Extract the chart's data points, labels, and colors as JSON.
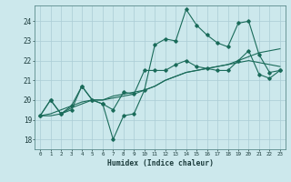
{
  "xlabel": "Humidex (Indice chaleur)",
  "bg_color": "#cce8ec",
  "grid_color": "#aaccd4",
  "line_color": "#1a6b5a",
  "xlim": [
    -0.5,
    23.5
  ],
  "ylim": [
    17.5,
    24.8
  ],
  "yticks": [
    18,
    19,
    20,
    21,
    22,
    23,
    24
  ],
  "xticks": [
    0,
    1,
    2,
    3,
    4,
    5,
    6,
    7,
    8,
    9,
    10,
    11,
    12,
    13,
    14,
    15,
    16,
    17,
    18,
    19,
    20,
    21,
    22,
    23
  ],
  "series1_x": [
    0,
    1,
    2,
    3,
    4,
    5,
    6,
    7,
    8,
    9,
    10,
    11,
    12,
    13,
    14,
    15,
    16,
    17,
    18,
    19,
    20,
    21,
    22,
    23
  ],
  "series1_y": [
    19.2,
    20.0,
    19.3,
    19.7,
    20.7,
    20.0,
    19.8,
    18.0,
    19.2,
    19.3,
    20.5,
    22.8,
    23.1,
    23.0,
    24.6,
    23.8,
    23.3,
    22.9,
    22.7,
    23.9,
    24.0,
    22.3,
    21.4,
    21.5
  ],
  "series2_x": [
    0,
    1,
    2,
    3,
    4,
    5,
    6,
    7,
    8,
    9,
    10,
    11,
    12,
    13,
    14,
    15,
    16,
    17,
    18,
    19,
    20,
    21,
    22,
    23
  ],
  "series2_y": [
    19.2,
    19.3,
    19.5,
    19.7,
    19.9,
    20.0,
    20.0,
    20.1,
    20.2,
    20.3,
    20.5,
    20.7,
    21.0,
    21.2,
    21.4,
    21.5,
    21.6,
    21.7,
    21.8,
    21.9,
    22.0,
    21.9,
    21.8,
    21.7
  ],
  "series3_x": [
    0,
    1,
    2,
    3,
    4,
    5,
    6,
    7,
    8,
    9,
    10,
    11,
    12,
    13,
    14,
    15,
    16,
    17,
    18,
    19,
    20,
    21,
    22,
    23
  ],
  "series3_y": [
    19.2,
    19.2,
    19.3,
    19.6,
    19.8,
    20.0,
    20.0,
    20.2,
    20.3,
    20.4,
    20.5,
    20.7,
    21.0,
    21.2,
    21.4,
    21.5,
    21.6,
    21.7,
    21.8,
    22.0,
    22.2,
    22.4,
    22.5,
    22.6
  ],
  "series4_x": [
    0,
    1,
    2,
    3,
    4,
    5,
    6,
    7,
    8,
    9,
    10,
    11,
    12,
    13,
    14,
    15,
    16,
    17,
    18,
    19,
    20,
    21,
    22,
    23
  ],
  "series4_y": [
    19.2,
    20.0,
    19.3,
    19.5,
    20.7,
    20.0,
    19.8,
    19.5,
    20.4,
    20.3,
    21.5,
    21.5,
    21.5,
    21.8,
    22.0,
    21.7,
    21.6,
    21.5,
    21.5,
    22.0,
    22.5,
    21.3,
    21.1,
    21.5
  ]
}
